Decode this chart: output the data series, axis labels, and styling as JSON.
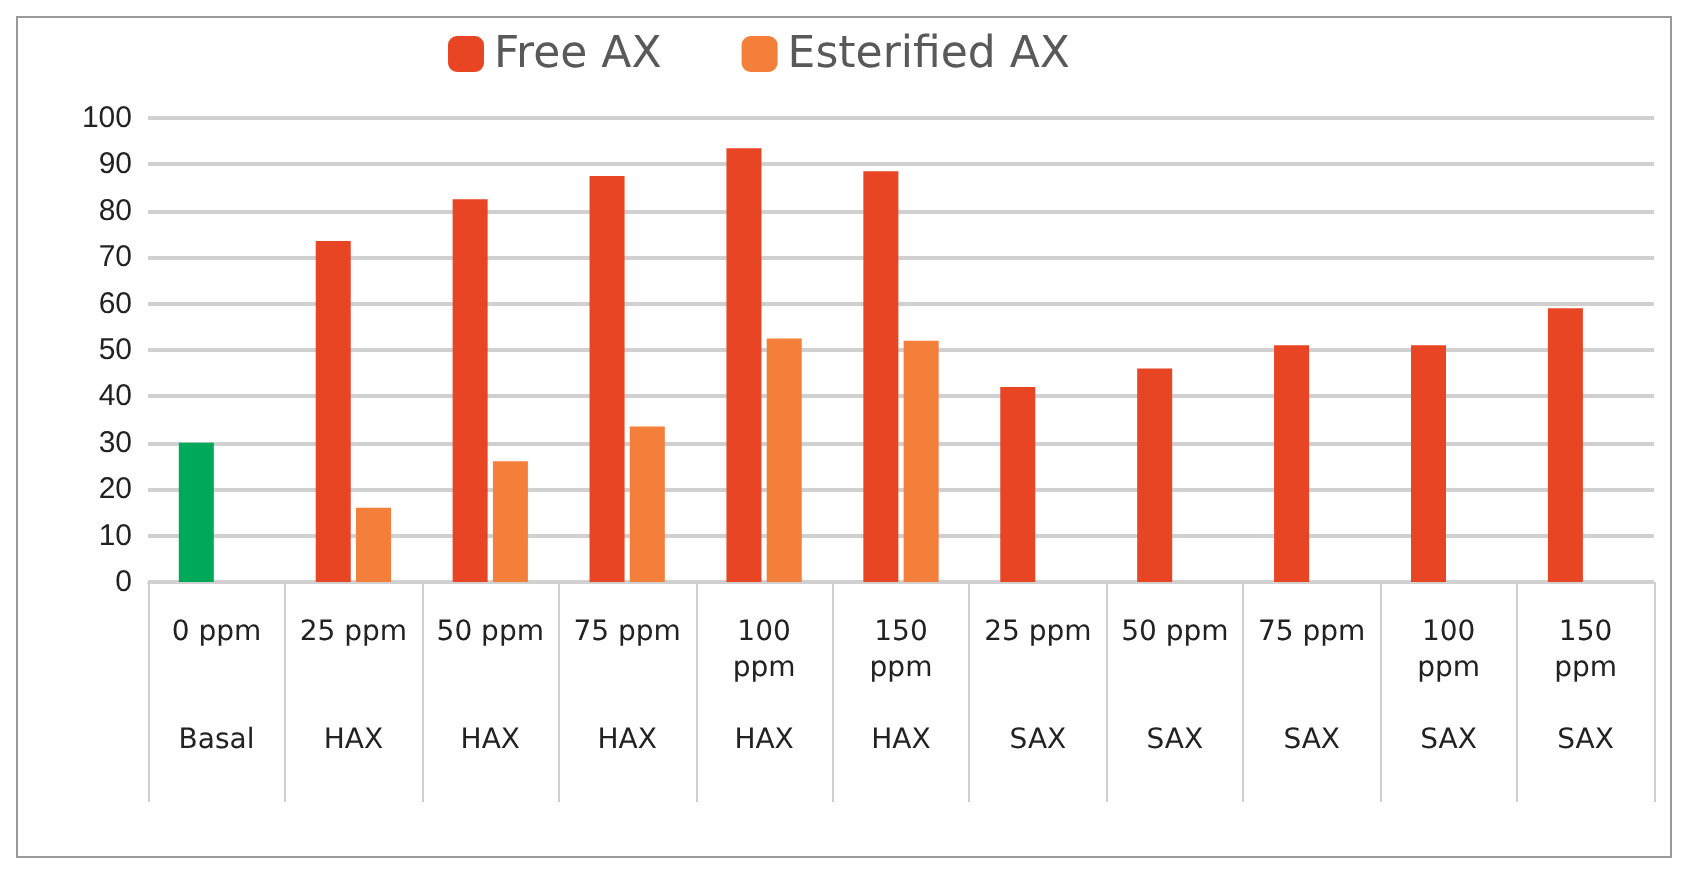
{
  "chart_data": {
    "type": "bar",
    "categories": [
      "0 ppm\nBasal",
      "25 ppm\nHAX",
      "50 ppm\nHAX",
      "75 ppm\nHAX",
      "100 ppm\nHAX",
      "150 ppm\nHAX",
      "25 ppm\nSAX",
      "50 ppm\nSAX",
      "75 ppm\nSAX",
      "100 ppm\nSAX",
      "150 ppm\nSAX"
    ],
    "series": [
      {
        "name": "Free AX",
        "color": "#e84525",
        "colors": [
          "#00a85a",
          "#e84525",
          "#e84525",
          "#e84525",
          "#e84525",
          "#e84525",
          "#e84525",
          "#e84525",
          "#e84525",
          "#e84525",
          "#e84525"
        ],
        "values": [
          30,
          73.5,
          82.5,
          87.5,
          93.5,
          88.5,
          42,
          46,
          51,
          51,
          59
        ]
      },
      {
        "name": "Esterified AX",
        "color": "#f47f3a",
        "values": [
          0,
          16,
          26,
          33.5,
          52.5,
          52,
          0,
          0,
          0,
          0,
          0
        ]
      }
    ],
    "ylim": [
      0,
      100
    ],
    "yticks": [
      0,
      10,
      20,
      30,
      40,
      50,
      60,
      70,
      80,
      90,
      100
    ],
    "grid": "y",
    "legend": "top"
  }
}
